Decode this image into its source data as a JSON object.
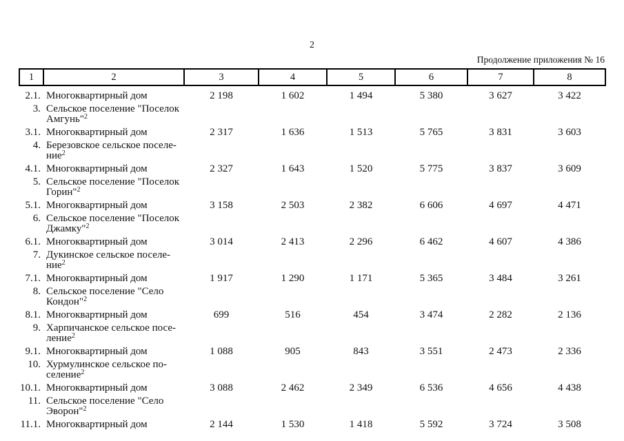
{
  "page": {
    "page_number": "2",
    "continuation_note": "Продолжение приложения № 16"
  },
  "table": {
    "header_cols": [
      "1",
      "2",
      "3",
      "4",
      "5",
      "6",
      "7",
      "8"
    ],
    "building_label": "Многоквартирный дом",
    "rows": [
      {
        "num": "2.1.",
        "name": "Многоквартирный дом",
        "values": [
          "2 198",
          "1 602",
          "1 494",
          "5 380",
          "3 627",
          "3 422"
        ]
      },
      {
        "num": "3.",
        "line1": "Сельское поселение \"Поселок",
        "line2": "Амгунь\"",
        "sup": "2"
      },
      {
        "num": "3.1.",
        "name": "Многоквартирный дом",
        "values": [
          "2 317",
          "1 636",
          "1 513",
          "5 765",
          "3 831",
          "3 603"
        ]
      },
      {
        "num": "4.",
        "line1": "Березовское сельское поселе-",
        "line2": "ние",
        "sup": "2"
      },
      {
        "num": "4.1.",
        "name": "Многоквартирный дом",
        "values": [
          "2 327",
          "1 643",
          "1 520",
          "5 775",
          "3 837",
          "3 609"
        ]
      },
      {
        "num": "5.",
        "line1": "Сельское поселение \"Поселок",
        "line2": "Горин\"",
        "sup": "2"
      },
      {
        "num": "5.1.",
        "name": "Многоквартирный дом",
        "values": [
          "3 158",
          "2 503",
          "2 382",
          "6 606",
          "4 697",
          "4 471"
        ]
      },
      {
        "num": "6.",
        "line1": "Сельское поселение \"Поселок",
        "line2": "Джамку\"",
        "sup": "2"
      },
      {
        "num": "6.1.",
        "name": "Многоквартирный дом",
        "values": [
          "3 014",
          "2 413",
          "2 296",
          "6 462",
          "4 607",
          "4 386"
        ]
      },
      {
        "num": "7.",
        "line1": "Дукинское сельское поселе-",
        "line2": "ние",
        "sup": "2"
      },
      {
        "num": "7.1.",
        "name": "Многоквартирный дом",
        "values": [
          "1 917",
          "1 290",
          "1 171",
          "5 365",
          "3 484",
          "3 261"
        ]
      },
      {
        "num": "8.",
        "line1": "Сельское поселение \"Село",
        "line2": "Кондон\"",
        "sup": "2"
      },
      {
        "num": "8.1.",
        "name": "Многоквартирный дом",
        "values": [
          "699",
          "516",
          "454",
          "3 474",
          "2 282",
          "2 136"
        ]
      },
      {
        "num": "9.",
        "line1": "Харпичанское сельское посе-",
        "line2": "ление",
        "sup": "2"
      },
      {
        "num": "9.1.",
        "name": "Многоквартирный дом",
        "values": [
          "1 088",
          "905",
          "843",
          "3 551",
          "2 473",
          "2 336"
        ]
      },
      {
        "num": "10.",
        "line1": "Хурмулинское сельское по-",
        "line2": "селение",
        "sup": "2"
      },
      {
        "num": "10.1.",
        "name": "Многоквартирный дом",
        "values": [
          "3 088",
          "2 462",
          "2 349",
          "6 536",
          "4 656",
          "4 438"
        ]
      },
      {
        "num": "11.",
        "line1": "Сельское поселение \"Село",
        "line2": "Эворон\"",
        "sup": "2"
      },
      {
        "num": "11.1.",
        "name": "Многоквартирный дом",
        "values": [
          "2 144",
          "1 530",
          "1 418",
          "5 592",
          "3 724",
          "3 508"
        ]
      }
    ]
  }
}
